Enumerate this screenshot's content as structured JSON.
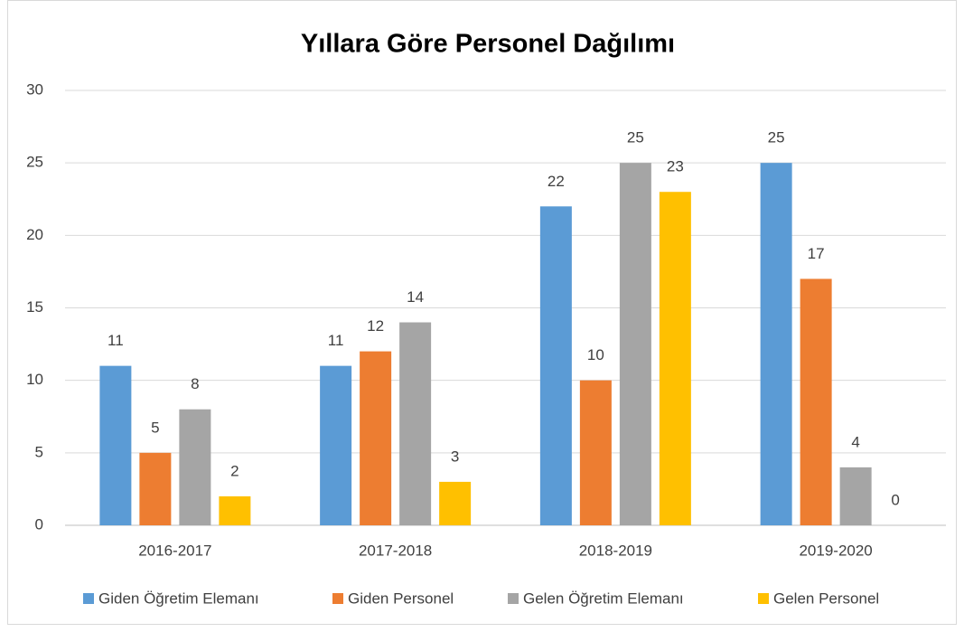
{
  "chart_data": {
    "type": "bar",
    "title": "Yıllara Göre Personel Dağılımı",
    "categories": [
      "2016-2017",
      "2017-2018",
      "2018-2019",
      "2019-2020"
    ],
    "series": [
      {
        "name": "Giden Öğretim Elemanı",
        "color": "#5b9bd5",
        "values": [
          11,
          11,
          22,
          25
        ]
      },
      {
        "name": "Giden Personel",
        "color": "#ed7d31",
        "values": [
          5,
          12,
          10,
          17
        ]
      },
      {
        "name": "Gelen Öğretim Elemanı",
        "color": "#a5a5a5",
        "values": [
          8,
          14,
          25,
          4
        ]
      },
      {
        "name": "Gelen Personel",
        "color": "#ffc000",
        "values": [
          2,
          3,
          23,
          0
        ]
      }
    ],
    "ylim": [
      0,
      30
    ],
    "yticks": [
      0,
      5,
      10,
      15,
      20,
      25,
      30
    ],
    "grid": true,
    "legend": "bottom"
  }
}
